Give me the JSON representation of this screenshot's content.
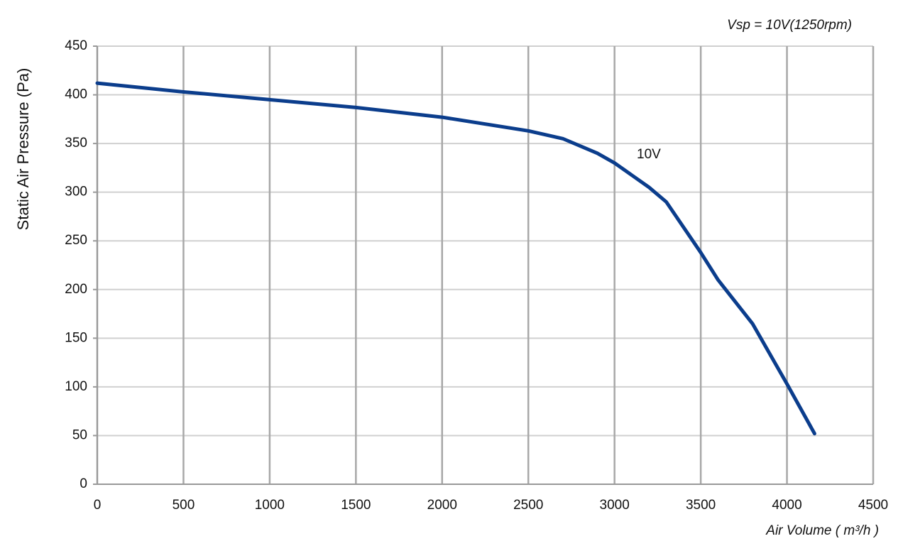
{
  "chart_data": {
    "type": "line",
    "subtitle": "Vsp = 10V(1250rpm)",
    "x_label": "Air Volume ( m³/h )",
    "y_label": "Static Air Pressure  (Pa)",
    "annotation": "10V",
    "x": [
      0,
      500,
      1000,
      1500,
      2000,
      2500,
      2700,
      2900,
      3000,
      3200,
      3300,
      3500,
      3600,
      3800,
      4000,
      4160
    ],
    "series": [
      {
        "name": "10V",
        "color": "#0b3d8c",
        "values": [
          412,
          403,
          395,
          387,
          377,
          363,
          355,
          340,
          330,
          305,
          290,
          238,
          210,
          165,
          103,
          52
        ]
      }
    ],
    "xlim": [
      0,
      4500
    ],
    "xticks": [
      0,
      500,
      1000,
      1500,
      2000,
      2500,
      3000,
      3500,
      4000,
      4500
    ],
    "ylim": [
      0,
      450
    ],
    "yticks": [
      0,
      50,
      100,
      150,
      200,
      250,
      300,
      350,
      400,
      450
    ],
    "grid": true
  }
}
